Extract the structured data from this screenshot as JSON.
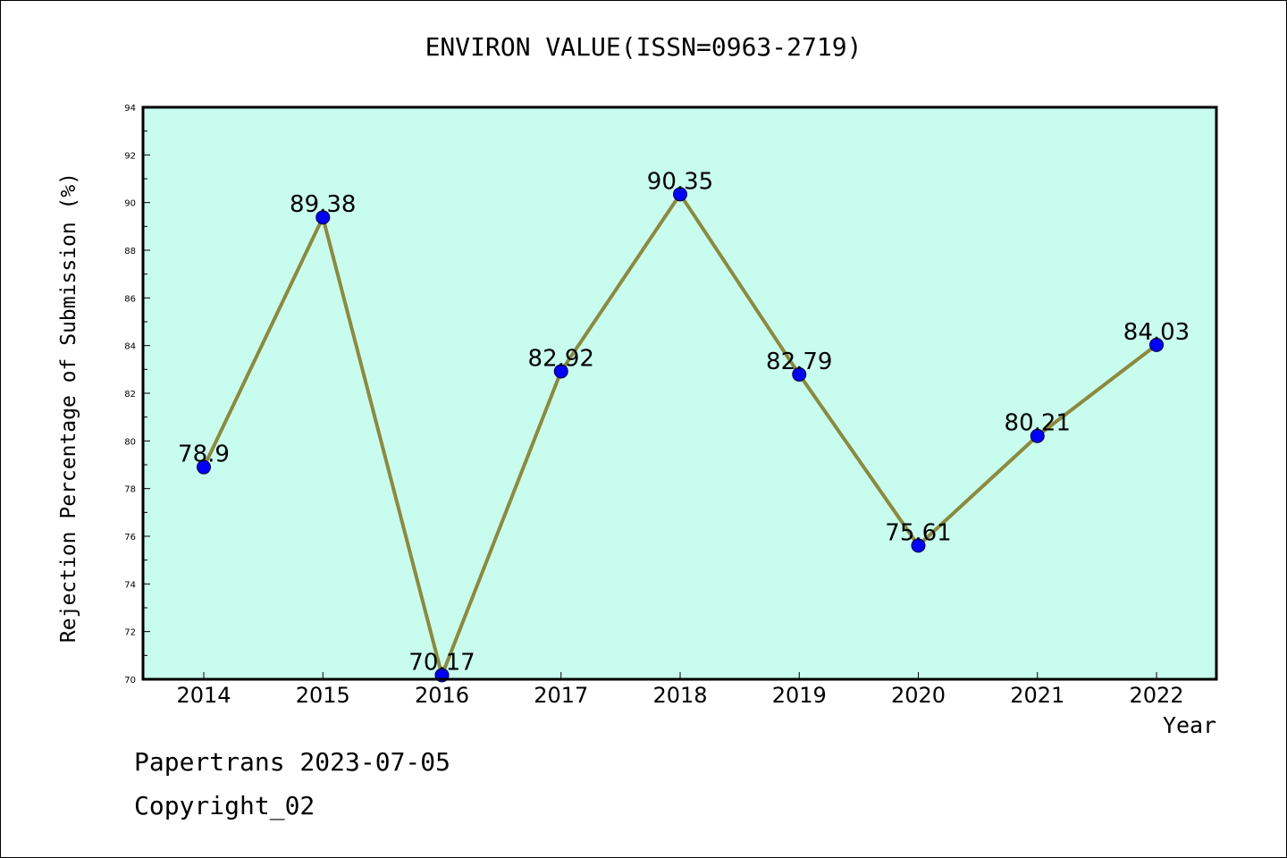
{
  "chart_data": {
    "type": "line",
    "title": "ENVIRON VALUE(ISSN=0963-2719)",
    "xlabel": "Year",
    "ylabel": "Rejection Percentage of Submission (%)",
    "categories": [
      "2014",
      "2015",
      "2016",
      "2017",
      "2018",
      "2019",
      "2020",
      "2021",
      "2022"
    ],
    "series": [
      {
        "values": [
          78.9,
          89.38,
          70.17,
          82.92,
          90.35,
          82.79,
          75.61,
          80.21,
          84.03
        ],
        "labels": [
          "78.9",
          "89.38",
          "70.17",
          "82.92",
          "90.35",
          "82.79",
          "75.61",
          "80.21",
          "84.03"
        ],
        "line_color": "#8c8a3c",
        "marker_color": "#0000ff"
      }
    ],
    "ylim": [
      70,
      94
    ],
    "yticks": [
      "70",
      "72",
      "74",
      "76",
      "78",
      "80",
      "82",
      "84",
      "86",
      "88",
      "90",
      "92",
      "94"
    ],
    "plot_background": "#c8fcee",
    "grid": false,
    "legend": "none"
  },
  "footer": {
    "line1": "Papertrans 2023-07-05",
    "line2": "Copyright_02"
  }
}
